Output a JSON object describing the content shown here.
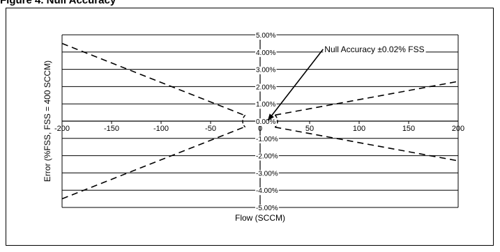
{
  "caption": "Figure 4. Null Accuracy",
  "chart_data": {
    "type": "line",
    "xlabel": "Flow (SCCM)",
    "ylabel": "Error (%FSS, FSS = 400 SCCM)",
    "xlim": [
      -200,
      200
    ],
    "ylim": [
      -5.0,
      5.0
    ],
    "x_ticks": [
      -200,
      -150,
      -100,
      -50,
      0,
      50,
      100,
      150,
      200
    ],
    "x_tick_labels": [
      "-200",
      "-150",
      "-100",
      "-50",
      "0",
      "50",
      "100",
      "150",
      "200"
    ],
    "y_ticks": [
      5,
      4,
      3,
      2,
      1,
      0,
      -1,
      -2,
      -3,
      -4,
      -5
    ],
    "y_tick_labels": [
      "5.00%",
      "4.00%",
      "3.00%",
      "2.00%",
      "1.00%",
      "0.00%",
      "-1.00%",
      "-2.00%",
      "-3.00%",
      "-4.00%",
      "-5.00%"
    ],
    "grid": true,
    "series": [
      {
        "style": "dashed",
        "x": [
          -200,
          -15
        ],
        "y": [
          4.5,
          0.32
        ]
      },
      {
        "style": "dashed",
        "x": [
          -200,
          -15
        ],
        "y": [
          -4.5,
          -0.32
        ]
      },
      {
        "style": "dashed",
        "x": [
          15,
          200
        ],
        "y": [
          0.35,
          2.3
        ]
      },
      {
        "style": "dashed",
        "x": [
          15,
          200
        ],
        "y": [
          -0.35,
          -2.3
        ]
      }
    ],
    "annotations": [
      {
        "text": "Null Accuracy ±0.02% FSS",
        "text_x": 65,
        "text_y": 4.0,
        "arrow_to_x": 8,
        "arrow_to_y": 0.05
      }
    ]
  }
}
